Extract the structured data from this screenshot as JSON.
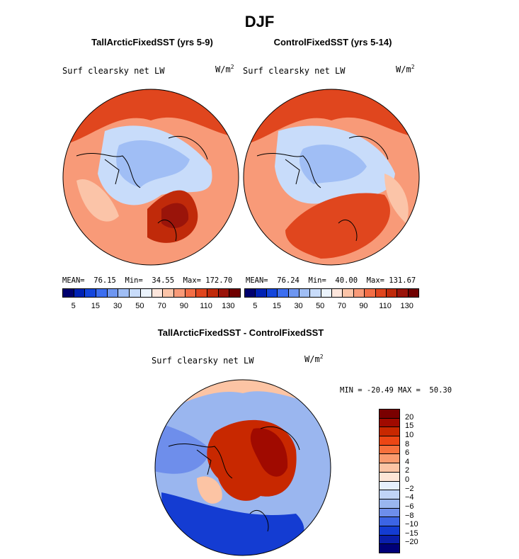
{
  "figure": {
    "title": "DJF",
    "variable": "Surf clearsky net LW",
    "units_base": "W/m",
    "units_exp": "2"
  },
  "chart_data": [
    {
      "type": "heatmap",
      "title": "TallArcticFixedSST (yrs 5-9)",
      "projection": "north polar stereographic",
      "stats": {
        "mean": "76.15",
        "min": "34.55",
        "max": "172.70"
      },
      "stats_text": "MEAN=  76.15  Min=  34.55  Max= 172.70",
      "colorbar_levels": [
        5,
        10,
        15,
        20,
        30,
        40,
        50,
        60,
        70,
        80,
        90,
        100,
        110,
        120,
        130
      ],
      "colorbar_labels": [
        "5",
        "15",
        "30",
        "50",
        "70",
        "90",
        "110",
        "130"
      ]
    },
    {
      "type": "heatmap",
      "title": "ControlFixedSST (yrs 5-14)",
      "projection": "north polar stereographic",
      "stats": {
        "mean": "76.24",
        "min": "40.00",
        "max": "131.67"
      },
      "stats_text": "MEAN=  76.24  Min=  40.00  Max= 131.67",
      "colorbar_levels": [
        5,
        10,
        15,
        20,
        30,
        40,
        50,
        60,
        70,
        80,
        90,
        100,
        110,
        120,
        130
      ],
      "colorbar_labels": [
        "5",
        "15",
        "30",
        "50",
        "70",
        "90",
        "110",
        "130"
      ]
    },
    {
      "type": "heatmap",
      "title": "TallArcticFixedSST - ControlFixedSST",
      "projection": "north polar stereographic",
      "stats": {
        "min": "-20.49",
        "max": "50.30"
      },
      "stats_text": "MIN = -20.49 MAX =  50.30",
      "colorbar_levels": [
        20,
        15,
        10,
        8,
        6,
        4,
        2,
        0,
        -2,
        -4,
        -6,
        -8,
        -10,
        -15,
        -20
      ],
      "colorbar_labels": [
        "20",
        "15",
        "10",
        "8",
        "6",
        "4",
        "2",
        "0",
        "−2",
        "−4",
        "−6",
        "−8",
        "−10",
        "−15",
        "−20"
      ]
    }
  ],
  "colors": {
    "abs_scale": [
      "#00006e",
      "#0022b4",
      "#1446dc",
      "#3c6ef0",
      "#6e96f0",
      "#a0bef5",
      "#c8dcfa",
      "#ebf3fc",
      "#fde6dc",
      "#fbc4a8",
      "#f89a78",
      "#f26e46",
      "#e0461e",
      "#c02a0a",
      "#9a140a",
      "#700000"
    ],
    "diff_scale": [
      "#7a0000",
      "#a00a00",
      "#c82800",
      "#ec4614",
      "#f7703c",
      "#fa9a6e",
      "#fcc4a4",
      "#fde6d6",
      "#e6f0fc",
      "#c0d4f6",
      "#9ab6ef",
      "#6e8eeb",
      "#3c64e4",
      "#143cd2",
      "#0a1eaa",
      "#000078"
    ]
  }
}
